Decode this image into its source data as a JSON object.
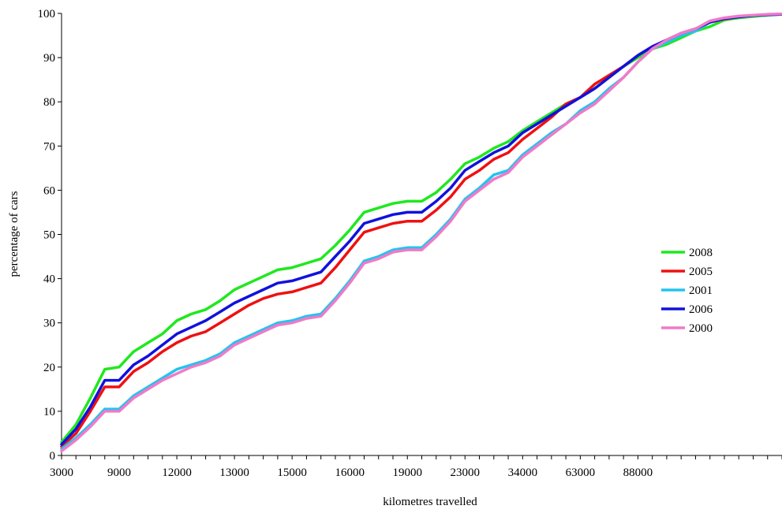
{
  "chart_data": {
    "type": "line",
    "title": "",
    "xlabel": "kilometres travelled",
    "ylabel": "percentage of cars",
    "x_tick_labels": [
      "3000",
      "9000",
      "12000",
      "13000",
      "15000",
      "16000",
      "19000",
      "23000",
      "34000",
      "63000",
      "88000"
    ],
    "y_ticks": [
      0,
      10,
      20,
      30,
      40,
      50,
      60,
      70,
      80,
      90,
      100
    ],
    "ylim": [
      0,
      100
    ],
    "x_positions": [
      0,
      1,
      2,
      3,
      4,
      5,
      6,
      7,
      8,
      9,
      10,
      11,
      12,
      13,
      14,
      15,
      16,
      17,
      18,
      19,
      20,
      21,
      22,
      23,
      24,
      25,
      26,
      27,
      28,
      29,
      30,
      31,
      32,
      33,
      34,
      35,
      36,
      37,
      38,
      39,
      40,
      41,
      42,
      43,
      44,
      45,
      46,
      47,
      48,
      49,
      50
    ],
    "x_tick_at": [
      0,
      4,
      8,
      12,
      16,
      20,
      24,
      28,
      32,
      36,
      40
    ],
    "grid": false,
    "legend_placement": "right",
    "series": [
      {
        "name": "2008",
        "color": "#1fe81f",
        "values": [
          3,
          7,
          13,
          19.5,
          20,
          23.5,
          25.5,
          27.5,
          30.5,
          32,
          33,
          35,
          37.5,
          39,
          40.5,
          42,
          42.5,
          43.5,
          44.5,
          47.5,
          51,
          55,
          56,
          57,
          57.5,
          57.5,
          59.5,
          62.5,
          66,
          67.5,
          69.5,
          71,
          73.5,
          75.5,
          77.5,
          79.5,
          81,
          83,
          85.5,
          88,
          90,
          92,
          93,
          94.5,
          96,
          97,
          98.5,
          99,
          99.3,
          99.6,
          99.8
        ]
      },
      {
        "name": "2005",
        "color": "#ee1111",
        "values": [
          2,
          5,
          10,
          15.5,
          15.5,
          19,
          21,
          23.5,
          25.5,
          27,
          28,
          30,
          32,
          34,
          35.5,
          36.5,
          37,
          38,
          39,
          42.5,
          46.5,
          50.5,
          51.5,
          52.5,
          53,
          53,
          55.5,
          58.5,
          62.5,
          64.5,
          67,
          68.5,
          71.5,
          74,
          76.5,
          79.5,
          81,
          84,
          86,
          88,
          90.5,
          92.5,
          94,
          95.5,
          96.5,
          98,
          98.7,
          99.2,
          99.5,
          99.7,
          99.8
        ]
      },
      {
        "name": "2001",
        "color": "#22c4ee",
        "values": [
          1.5,
          4,
          7,
          10.5,
          10.5,
          13.5,
          15.5,
          17.5,
          19.5,
          20.5,
          21.5,
          23,
          25.5,
          27,
          28.5,
          30,
          30.5,
          31.5,
          32,
          35.5,
          39.5,
          44,
          45,
          46.5,
          47,
          47,
          50,
          53.5,
          58,
          60.5,
          63.5,
          64.5,
          68,
          70.5,
          73,
          75,
          78,
          80,
          83,
          85.5,
          89,
          92,
          93.5,
          95,
          96,
          98,
          98.8,
          99.2,
          99.5,
          99.7,
          99.8
        ]
      },
      {
        "name": "2006",
        "color": "#1111dd",
        "values": [
          2.5,
          6,
          11,
          17,
          17,
          20.5,
          22.5,
          25,
          27.5,
          29,
          30.5,
          32.5,
          34.5,
          36,
          37.5,
          39,
          39.5,
          40.5,
          41.5,
          45,
          48.5,
          52.5,
          53.5,
          54.5,
          55,
          55,
          57.5,
          60.5,
          64.5,
          66.5,
          68.5,
          70,
          73,
          75,
          77,
          79,
          81,
          83,
          85.5,
          88,
          90.5,
          92.5,
          94,
          95.5,
          96.5,
          98,
          98.8,
          99.2,
          99.5,
          99.7,
          99.8
        ]
      },
      {
        "name": "2000",
        "color": "#f07ac8",
        "values": [
          1,
          3.5,
          6.5,
          10,
          10,
          13,
          15,
          17,
          18.5,
          20,
          21,
          22.5,
          25,
          26.5,
          28,
          29.5,
          30,
          31,
          31.5,
          35,
          39,
          43.5,
          44.5,
          46,
          46.5,
          46.5,
          49.5,
          53,
          57.5,
          60,
          62.5,
          64,
          67.5,
          70,
          72.5,
          75,
          77.5,
          79.5,
          82.5,
          85.5,
          89,
          92,
          94,
          95.5,
          96.5,
          98.3,
          99,
          99.4,
          99.6,
          99.8,
          99.9
        ]
      }
    ]
  }
}
